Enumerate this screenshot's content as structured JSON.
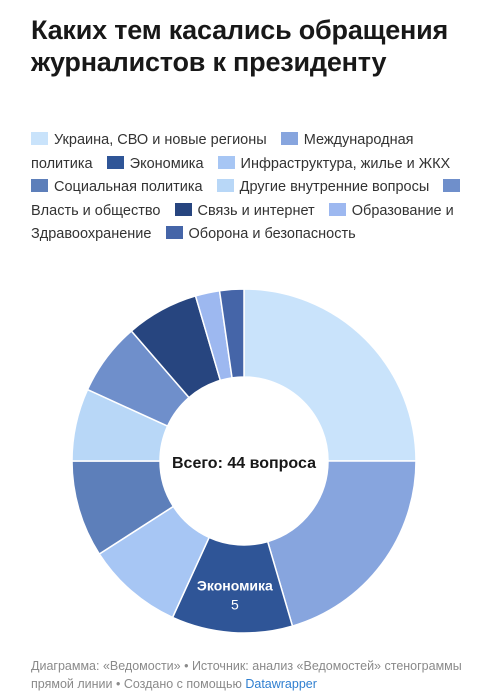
{
  "header": {
    "title": "Каких тем касались обращения журналистов к президенту"
  },
  "chart_data": {
    "type": "pie",
    "subtype": "donut",
    "center_label": "Всего: 44 вопроса",
    "series": [
      {
        "name": "Украина, СВО и новые регионы",
        "value": 11,
        "color": "#c9e3fb"
      },
      {
        "name": "Международная политика",
        "value": 9,
        "color": "#87a5de"
      },
      {
        "name": "Экономика",
        "value": 5,
        "color": "#2f5597",
        "label": "Экономика",
        "value_label": "5"
      },
      {
        "name": "Инфраструктура, жилье и ЖКХ",
        "value": 4,
        "color": "#a7c6f4"
      },
      {
        "name": "Социальная политика",
        "value": 4,
        "color": "#5d7fba"
      },
      {
        "name": "Другие внутренние вопросы",
        "value": 3,
        "color": "#b8d7f7"
      },
      {
        "name": "Власть и общество",
        "value": 3,
        "color": "#6f8fcb"
      },
      {
        "name": "Связь и интернет",
        "value": 3,
        "color": "#27457f"
      },
      {
        "name": "Образование и Здравоохранение",
        "value": 1,
        "color": "#9db8f0"
      },
      {
        "name": "Оборона и безопасность",
        "value": 1,
        "color": "#4565a8"
      }
    ]
  },
  "footer": {
    "text": "Диаграмма: «Ведомости» • Источник: анализ «Ведомостей» стенограммы прямой линии • Создано с помощью",
    "link": "Datawrapper"
  }
}
